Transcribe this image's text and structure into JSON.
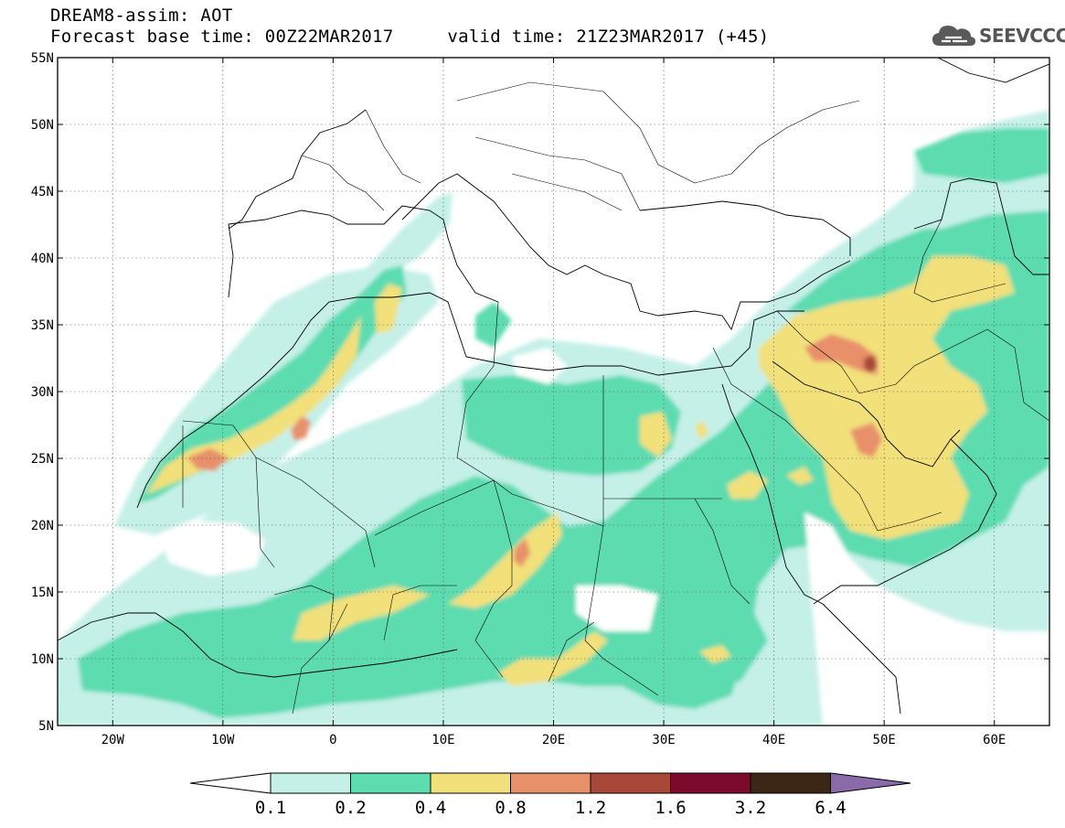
{
  "header": {
    "line1": "DREAM8-assim: AOT",
    "line2": "Forecast base time: 00Z22MAR2017     valid time: 21Z23MAR2017 (+45)"
  },
  "logo": {
    "text": "SEEVCCC",
    "icon": "cloud-icon"
  },
  "map": {
    "lat_labels": [
      "55N",
      "50N",
      "45N",
      "40N",
      "35N",
      "30N",
      "25N",
      "20N",
      "15N",
      "10N",
      "5N"
    ],
    "lon_labels": [
      "20W",
      "10W",
      "0",
      "10E",
      "20E",
      "30E",
      "40E",
      "50E",
      "60E"
    ],
    "extent": {
      "lon_min": -25,
      "lon_max": 65,
      "lat_min": 5,
      "lat_max": 55
    }
  },
  "colorbar": {
    "labels": [
      "0.1",
      "0.2",
      "0.4",
      "0.8",
      "1.2",
      "1.6",
      "3.2",
      "6.4"
    ],
    "colors": [
      "#ffffff",
      "#c4f0e8",
      "#5ddcb0",
      "#f2e07a",
      "#e8906a",
      "#a84838",
      "#7c0a2c",
      "#3c2616",
      "#8a6aa8"
    ]
  }
}
